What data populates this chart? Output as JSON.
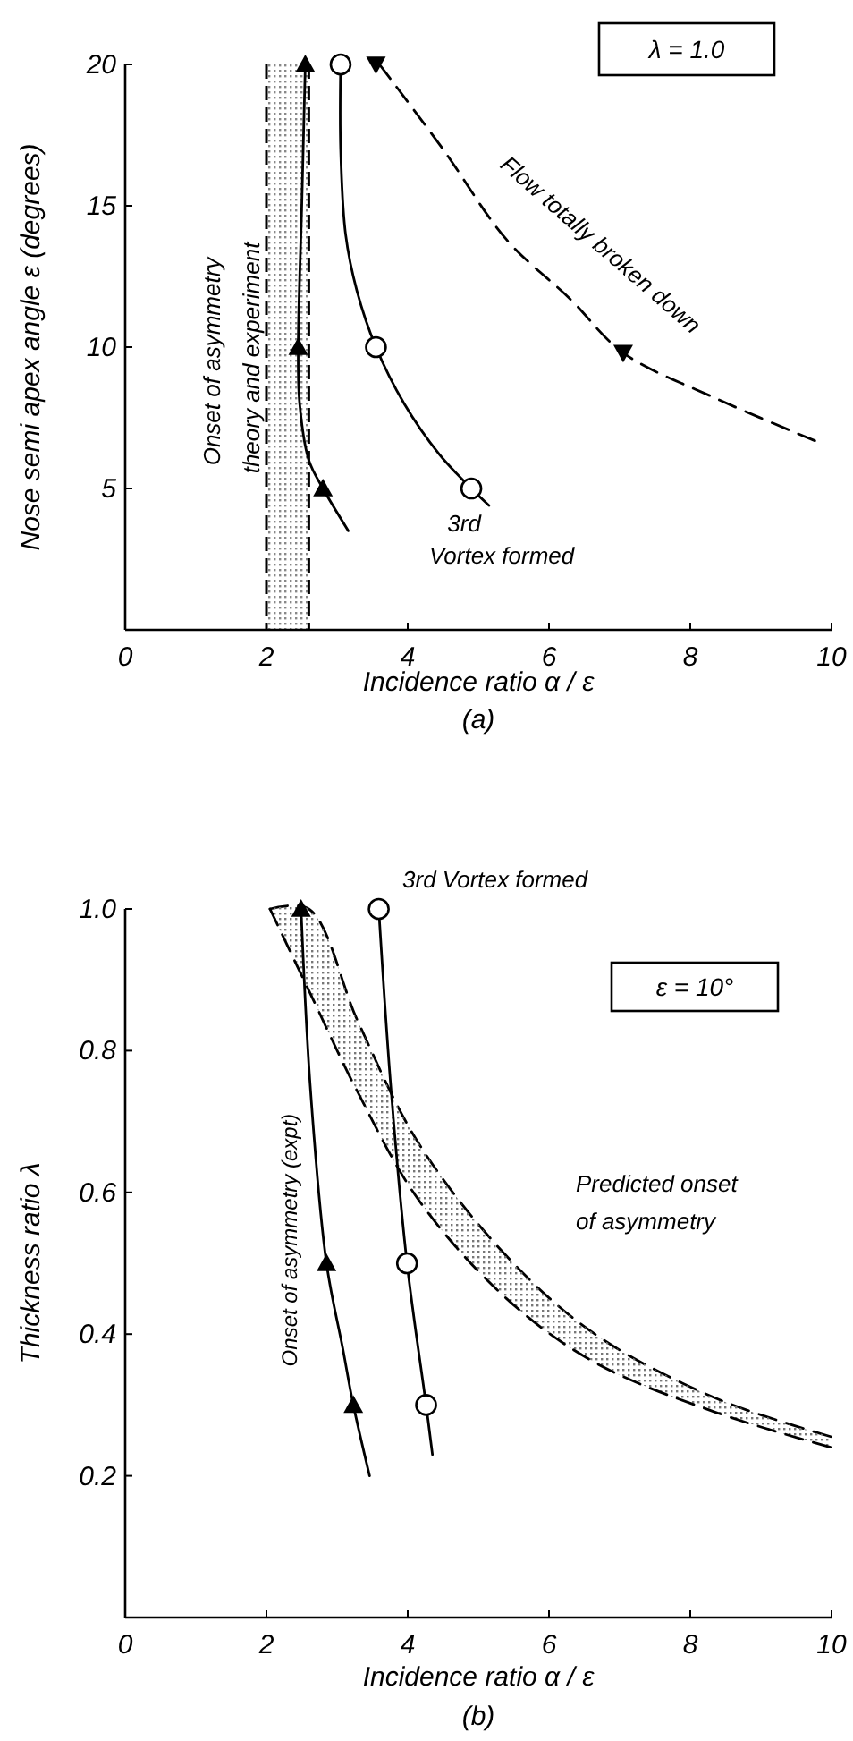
{
  "chart_data": [
    {
      "type": "line",
      "title": "(a)",
      "xlabel": "Incidence ratio  α / ε",
      "ylabel": "Nose semi apex angle  ε  (degrees)",
      "xlim": [
        0,
        10
      ],
      "ylim": [
        0,
        20
      ],
      "xticks": [
        0,
        2,
        4,
        6,
        8,
        10
      ],
      "yticks": [
        5,
        10,
        15,
        20
      ],
      "series": [
        {
          "type": "line",
          "color": "#000000",
          "x": [
            2.55,
            2.5,
            2.45,
            2.47,
            2.6,
            2.8,
            3.16
          ],
          "values": [
            20,
            15,
            10,
            8,
            6,
            5,
            3.5
          ]
        },
        {
          "type": "scatter",
          "color": "#000000",
          "marker": "triangle",
          "x": [
            2.55,
            2.45,
            2.8
          ],
          "values": [
            20,
            10,
            5
          ]
        },
        {
          "type": "line",
          "color": "#000000",
          "x": [
            3.05,
            3.05,
            3.12,
            3.28,
            3.55,
            3.95,
            4.45,
            4.9,
            5.15
          ],
          "values": [
            20,
            17,
            14,
            12,
            10,
            8,
            6.2,
            5,
            4.4
          ]
        },
        {
          "type": "scatter",
          "color": "#000000",
          "marker": "circle",
          "x": [
            3.05,
            3.55,
            4.9
          ],
          "values": [
            20,
            10,
            5
          ]
        },
        {
          "type": "line",
          "color": "#000000",
          "line_style": "dashed",
          "x": [
            3.6,
            4.5,
            5.4,
            6.3,
            7.05,
            8.35,
            9.85
          ],
          "values": [
            20,
            17,
            13.8,
            11.7,
            9.8,
            8.2,
            6.6
          ]
        },
        {
          "type": "scatter",
          "color": "#000000",
          "marker": "triangle-down",
          "x": [
            3.55,
            7.05
          ],
          "values": [
            20,
            9.8
          ]
        }
      ],
      "bands": [
        {
          "axis": "x",
          "from": 2,
          "to": 2.6,
          "color": "#888888"
        }
      ],
      "annotations": [
        "λ = 1.0",
        "Flow totally broken down",
        {
          "text": "3rd Vortex formed",
          "x": 4.9,
          "y": 5
        },
        {
          "text": "Onset of asymmetry theory and experiment",
          "x": 2,
          "y": 10
        }
      ]
    },
    {
      "type": "line",
      "title": "(b)",
      "xlabel": "Incidence ratio  α / ε",
      "ylabel": "Thickness ratio  λ",
      "xlim": [
        0,
        10
      ],
      "ylim": [
        0,
        1
      ],
      "xticks": [
        0,
        2,
        4,
        6,
        8,
        10
      ],
      "yticks": [
        0.2,
        0.4,
        0.6,
        0.8,
        {
          "value": 1,
          "label": "1.0"
        }
      ],
      "series": [
        {
          "type": "line",
          "color": "#000000",
          "line_style": "dashed",
          "x": [
            2.05,
            2.6,
            3.3,
            4.15,
            5.4,
            6.65,
            8.35,
            10
          ],
          "values": [
            1.0,
            1.0,
            0.84,
            0.67,
            0.51,
            0.4,
            0.31,
            0.255
          ]
        },
        {
          "type": "line",
          "color": "#000000",
          "line_style": "dashed",
          "x": [
            2.05,
            2.6,
            3.3,
            4.15,
            5.4,
            6.65,
            8.35,
            10
          ],
          "values": [
            1.0,
            0.885,
            0.74,
            0.59,
            0.45,
            0.36,
            0.29,
            0.24
          ],
          "upper": [
            1.0,
            1.0,
            0.84,
            0.67,
            0.51,
            0.4,
            0.31,
            0.255
          ],
          "lower": [
            1.0,
            0.885,
            0.74,
            0.59,
            0.45,
            0.36,
            0.29,
            0.24
          ]
        },
        {
          "type": "line",
          "color": "#000000",
          "x": [
            2.49,
            2.62,
            2.85,
            3.08,
            3.23,
            3.46
          ],
          "values": [
            1.0,
            0.75,
            0.5,
            0.38,
            0.3,
            0.2
          ]
        },
        {
          "type": "scatter",
          "color": "#000000",
          "marker": "triangle",
          "x": [
            2.49,
            2.85,
            3.23
          ],
          "values": [
            1.0,
            0.5,
            0.3
          ]
        },
        {
          "type": "line",
          "color": "#000000",
          "x": [
            3.59,
            3.76,
            3.99,
            4.26,
            4.35
          ],
          "values": [
            1.0,
            0.75,
            0.5,
            0.3,
            0.23
          ]
        },
        {
          "type": "scatter",
          "color": "#000000",
          "marker": "circle",
          "x": [
            3.59,
            3.99,
            4.26
          ],
          "values": [
            1.0,
            0.5,
            0.3
          ]
        }
      ],
      "annotations": [
        "ε = 10°",
        {
          "text": "3rd Vortex formed",
          "x": 3.59,
          "y": 1.0
        },
        "Predicted onset of asymmetry",
        "Onset of asymmetry (expt)"
      ]
    }
  ]
}
